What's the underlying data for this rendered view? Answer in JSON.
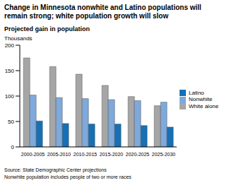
{
  "chart_data": {
    "type": "bar",
    "title": "Change in Minnesota nonwhite and Latino populations will remain strong; white population growth will slow",
    "subtitle": "Projected gain in population",
    "y_label": "Thousands",
    "categories": [
      "2000-2005",
      "2005-2010",
      "2010-2015",
      "2015-2020",
      "2020-2025",
      "2025-2030"
    ],
    "series": [
      {
        "name": "White alone",
        "color": "#a6a6a6",
        "values": [
          175,
          158,
          143,
          121,
          99,
          81
        ]
      },
      {
        "name": "Nonwhite",
        "color": "#7ea9dc",
        "values": [
          102,
          97,
          95,
          93,
          91,
          88
        ]
      },
      {
        "name": "Latino",
        "color": "#1670b3",
        "values": [
          51,
          46,
          45,
          45,
          42,
          39
        ]
      }
    ],
    "ylim": [
      0,
      200
    ],
    "yticks": [
      0,
      50,
      100,
      150,
      200
    ],
    "grid": false,
    "legend": "right",
    "annotations": [
      "Source: State Demographic Center projections",
      "Nonwhite population includes people of two or more races"
    ]
  }
}
